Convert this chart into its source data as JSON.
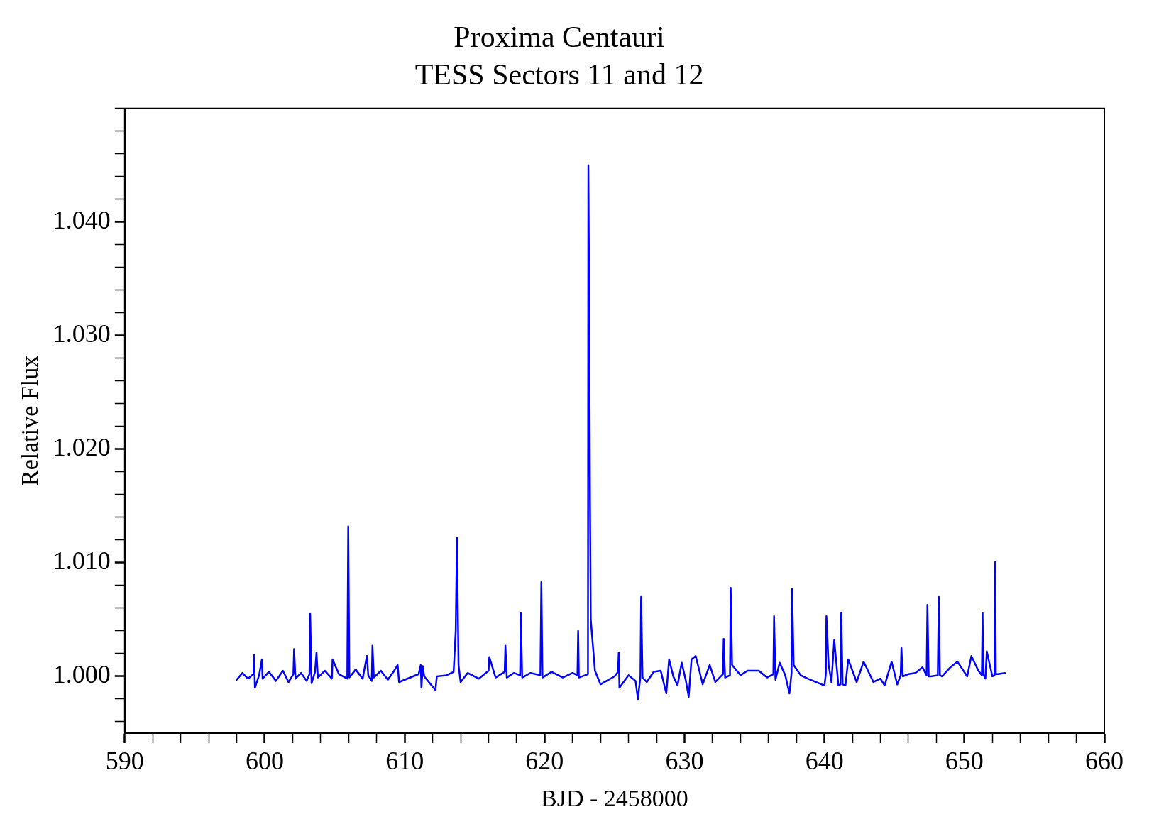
{
  "chart_data": {
    "type": "line",
    "title": "Proxima Centauri",
    "subtitle": "TESS Sectors 11 and 12",
    "xlabel": "BJD - 2458000",
    "ylabel": "Relative Flux",
    "xlim": [
      590,
      660
    ],
    "ylim": [
      0.995,
      1.05
    ],
    "xticks": [
      590,
      {
        "value": 592,
        "label": null
      },
      {
        "value": 594,
        "label": null
      },
      {
        "value": 596,
        "label": null
      },
      {
        "value": 598,
        "label": null
      },
      600,
      {
        "value": 602,
        "label": null
      },
      {
        "value": 604,
        "label": null
      },
      {
        "value": 606,
        "label": null
      },
      {
        "value": 608,
        "label": null
      },
      610,
      {
        "value": 612,
        "label": null
      },
      {
        "value": 614,
        "label": null
      },
      {
        "value": 616,
        "label": null
      },
      {
        "value": 618,
        "label": null
      },
      620,
      {
        "value": 622,
        "label": null
      },
      {
        "value": 624,
        "label": null
      },
      {
        "value": 626,
        "label": null
      },
      {
        "value": 628,
        "label": null
      },
      630,
      {
        "value": 632,
        "label": null
      },
      {
        "value": 634,
        "label": null
      },
      {
        "value": 636,
        "label": null
      },
      {
        "value": 638,
        "label": null
      },
      640,
      {
        "value": 642,
        "label": null
      },
      {
        "value": 644,
        "label": null
      },
      {
        "value": 646,
        "label": null
      },
      {
        "value": 648,
        "label": null
      },
      650,
      {
        "value": 652,
        "label": null
      },
      {
        "value": 654,
        "label": null
      },
      {
        "value": 656,
        "label": null
      },
      {
        "value": 658,
        "label": null
      },
      660
    ],
    "yticks": [
      {
        "value": 0.996,
        "label": null
      },
      {
        "value": 0.998,
        "label": null
      },
      {
        "value": 1.0,
        "label": "1.000"
      },
      {
        "value": 1.002,
        "label": null
      },
      {
        "value": 1.004,
        "label": null
      },
      {
        "value": 1.006,
        "label": null
      },
      {
        "value": 1.008,
        "label": null
      },
      {
        "value": 1.01,
        "label": "1.010"
      },
      {
        "value": 1.012,
        "label": null
      },
      {
        "value": 1.014,
        "label": null
      },
      {
        "value": 1.016,
        "label": null
      },
      {
        "value": 1.018,
        "label": null
      },
      {
        "value": 1.02,
        "label": "1.020"
      },
      {
        "value": 1.022,
        "label": null
      },
      {
        "value": 1.024,
        "label": null
      },
      {
        "value": 1.026,
        "label": null
      },
      {
        "value": 1.028,
        "label": null
      },
      {
        "value": 1.03,
        "label": "1.030"
      },
      {
        "value": 1.032,
        "label": null
      },
      {
        "value": 1.034,
        "label": null
      },
      {
        "value": 1.036,
        "label": null
      },
      {
        "value": 1.038,
        "label": null
      },
      {
        "value": 1.04,
        "label": "1.040"
      },
      {
        "value": 1.042,
        "label": null
      },
      {
        "value": 1.044,
        "label": null
      },
      {
        "value": 1.046,
        "label": null
      },
      {
        "value": 1.048,
        "label": null
      },
      {
        "value": 1.05,
        "label": null
      }
    ],
    "grid": false,
    "legend": false,
    "marker": "none",
    "line_style": "solid",
    "series": [
      {
        "color": "#0000ff",
        "x": [
          598.0,
          598.4,
          598.8,
          599.2,
          599.25,
          599.3,
          599.6,
          599.8,
          599.85,
          600.3,
          600.8,
          601.3,
          601.7,
          602.05,
          602.1,
          602.2,
          602.6,
          603.0,
          603.2,
          603.25,
          603.35,
          603.6,
          603.7,
          603.8,
          604.3,
          604.8,
          604.85,
          605.3,
          605.9,
          605.97,
          606.05,
          606.5,
          607.0,
          607.3,
          607.4,
          607.65,
          607.7,
          607.8,
          608.3,
          608.8,
          609.2,
          609.5,
          609.6,
          611.0,
          611.15,
          611.2,
          611.3,
          611.4,
          612.2,
          612.3,
          613.0,
          613.5,
          613.65,
          613.74,
          613.85,
          614.0,
          614.5,
          615.3,
          616.0,
          616.05,
          616.5,
          617.15,
          617.2,
          617.3,
          617.8,
          618.25,
          618.3,
          618.4,
          619.0,
          619.7,
          619.77,
          619.85,
          620.5,
          621.3,
          622.0,
          622.35,
          622.4,
          622.45,
          622.9,
          623.1,
          623.13,
          623.18,
          623.25,
          623.3,
          623.6,
          624.0,
          625.0,
          625.25,
          625.3,
          625.35,
          626.0,
          626.5,
          626.67,
          626.85,
          626.9,
          627.0,
          627.3,
          627.8,
          628.3,
          628.7,
          628.9,
          629.2,
          629.5,
          629.8,
          630.1,
          630.3,
          630.5,
          630.8,
          631.3,
          631.8,
          632.2,
          632.75,
          632.8,
          632.9,
          633.25,
          633.3,
          633.4,
          634.0,
          634.5,
          635.3,
          635.9,
          636.35,
          636.4,
          636.5,
          636.8,
          637.2,
          637.5,
          637.65,
          637.69,
          637.8,
          638.3,
          638.8,
          640.0,
          640.1,
          640.14,
          640.3,
          640.5,
          640.7,
          641.0,
          641.15,
          641.2,
          641.3,
          641.5,
          641.7,
          642.3,
          642.8,
          643.5,
          644.0,
          644.3,
          644.8,
          645.2,
          645.45,
          645.5,
          645.6,
          646.0,
          646.5,
          647.0,
          647.3,
          647.36,
          647.45,
          647.6,
          648.1,
          648.17,
          648.25,
          648.4,
          649.0,
          649.5,
          650.2,
          650.5,
          651.0,
          651.25,
          651.3,
          651.35,
          651.5,
          651.6,
          652.0,
          652.15,
          652.2,
          652.25,
          652.4,
          652.9
        ],
        "values": [
          0.9997,
          1.0003,
          0.9998,
          1.0002,
          1.0019,
          0.999,
          1.0001,
          1.0015,
          0.9998,
          1.0004,
          0.9996,
          1.0005,
          0.9995,
          1.0002,
          1.0024,
          0.9998,
          1.0003,
          0.9996,
          1.0002,
          1.0055,
          0.9994,
          1.0004,
          1.0021,
          0.9999,
          1.0005,
          0.9998,
          1.0015,
          1.0002,
          0.9998,
          1.0132,
          0.9999,
          1.0006,
          0.9998,
          1.0018,
          1.0001,
          0.9996,
          1.0027,
          0.9999,
          1.0005,
          0.9997,
          1.0004,
          1.001,
          0.9995,
          1.0002,
          1.001,
          0.999,
          1.0009,
          1.0,
          0.9988,
          1.0,
          1.0001,
          1.0004,
          1.004,
          1.0122,
          1.001,
          0.9995,
          1.0003,
          0.9998,
          1.0005,
          1.0017,
          0.9999,
          1.0004,
          1.0027,
          0.9999,
          1.0003,
          1.0001,
          1.0056,
          0.9999,
          1.0003,
          1.0001,
          1.0083,
          0.9999,
          1.0004,
          0.9999,
          1.0003,
          1.0001,
          1.004,
          0.9999,
          1.0001,
          1.0002,
          1.045,
          1.035,
          1.015,
          1.005,
          1.0005,
          0.9993,
          1.0,
          1.0004,
          1.0021,
          0.999,
          1.0001,
          0.9996,
          0.998,
          1.0,
          1.007,
          0.9999,
          0.9995,
          1.0004,
          1.0005,
          0.9985,
          1.0015,
          1.0,
          0.9992,
          1.0012,
          0.9996,
          0.9982,
          1.0015,
          1.0018,
          0.9993,
          1.001,
          0.9995,
          1.0002,
          1.0033,
          0.9999,
          1.0001,
          1.0078,
          1.001,
          1.0001,
          1.0005,
          1.0005,
          0.9999,
          1.0002,
          1.0053,
          0.9997,
          1.0012,
          1.0001,
          0.9985,
          1.0003,
          1.0077,
          1.001,
          1.0001,
          0.9998,
          0.9992,
          1.0002,
          1.0053,
          1.001,
          0.9995,
          1.0032,
          0.9992,
          0.9993,
          1.0056,
          0.9993,
          0.9992,
          1.0015,
          0.9995,
          1.0013,
          0.9995,
          0.9998,
          0.9992,
          1.0013,
          0.9993,
          1.0001,
          1.0025,
          1.0,
          1.0002,
          1.0003,
          1.0008,
          1.0001,
          1.0063,
          1.0,
          1.0,
          1.0001,
          1.007,
          1.0001,
          1.0,
          1.0008,
          1.0013,
          1.0,
          1.0018,
          1.0005,
          1.0001,
          1.0056,
          1.0002,
          0.9998,
          1.0022,
          1.0,
          1.0001,
          1.0101,
          1.0002,
          1.0002,
          1.0003
        ]
      }
    ]
  }
}
